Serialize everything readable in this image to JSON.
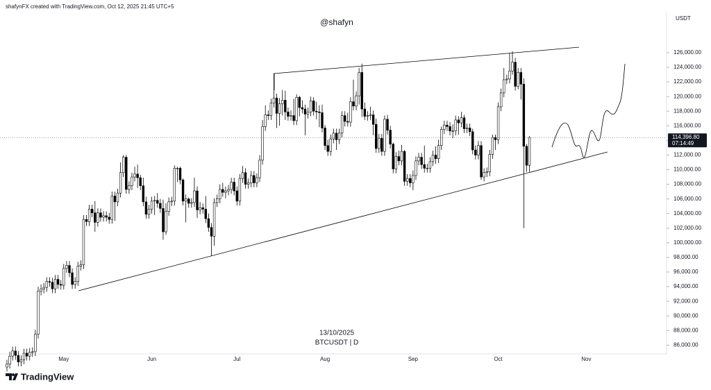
{
  "header": {
    "credit": "shafynFX created with TradingView.com, Oct 12, 2025 21:45 UTC+5",
    "author": "@shafyn",
    "brand": "TradingView"
  },
  "chart_data": {
    "type": "candlestick",
    "symbol": "BTCUSDT | D",
    "date_label": "13/10/2025",
    "currency": "USDT",
    "up_color": "#ffffff",
    "down_color": "#000000",
    "edge_color": "#000000",
    "last_price": {
      "value": 114396.8,
      "label": "114,396.80"
    },
    "countdown": "07:14:49",
    "ylim": [
      84800,
      131500
    ],
    "yticks": [
      {
        "value": 86000,
        "label": "86,000.00"
      },
      {
        "value": 88000,
        "label": "88,000.00"
      },
      {
        "value": 90000,
        "label": "90,000.00"
      },
      {
        "value": 92000,
        "label": "92,000.00"
      },
      {
        "value": 94000,
        "label": "94,000.00"
      },
      {
        "value": 96000,
        "label": "96,000.00"
      },
      {
        "value": 98000,
        "label": "98,000.00"
      },
      {
        "value": 100000,
        "label": "100,000.00"
      },
      {
        "value": 102000,
        "label": "102,000.00"
      },
      {
        "value": 104000,
        "label": "104,000.00"
      },
      {
        "value": 106000,
        "label": "106,000.00"
      },
      {
        "value": 108000,
        "label": "108,000.00"
      },
      {
        "value": 110000,
        "label": "110,000.00"
      },
      {
        "value": 112000,
        "label": "112,000.00"
      },
      {
        "value": 114000,
        "label": "114,000.00"
      },
      {
        "value": 116000,
        "label": "116,000.00"
      },
      {
        "value": 118000,
        "label": "118,000.00"
      },
      {
        "value": 120000,
        "label": "120,000.00"
      },
      {
        "value": 122000,
        "label": "122,000.00"
      },
      {
        "value": 124000,
        "label": "124,000.00"
      },
      {
        "value": 126000,
        "label": "126,000.00"
      }
    ],
    "categories": [
      null,
      null,
      null,
      null,
      null,
      null,
      null,
      null,
      null,
      null,
      null,
      null,
      null,
      null,
      null,
      null,
      null,
      null,
      null,
      null,
      "May",
      null,
      null,
      null,
      null,
      null,
      null,
      null,
      null,
      null,
      null,
      null,
      null,
      null,
      null,
      null,
      null,
      null,
      null,
      null,
      null,
      null,
      null,
      null,
      null,
      null,
      null,
      null,
      null,
      null,
      null,
      "Jun",
      null,
      null,
      null,
      null,
      null,
      null,
      null,
      null,
      null,
      null,
      null,
      null,
      null,
      null,
      null,
      null,
      null,
      null,
      null,
      null,
      null,
      null,
      null,
      null,
      null,
      null,
      null,
      null,
      null,
      "Jul",
      null,
      null,
      null,
      null,
      null,
      null,
      null,
      null,
      null,
      null,
      null,
      null,
      null,
      null,
      null,
      null,
      null,
      null,
      null,
      null,
      null,
      null,
      null,
      null,
      null,
      null,
      null,
      null,
      null,
      null,
      "Aug",
      null,
      null,
      null,
      null,
      null,
      null,
      null,
      null,
      null,
      null,
      null,
      null,
      null,
      null,
      null,
      null,
      null,
      null,
      null,
      null,
      null,
      null,
      null,
      null,
      null,
      null,
      null,
      null,
      null,
      null,
      "Sep",
      null,
      null,
      null,
      null,
      null,
      null,
      null,
      null,
      null,
      null,
      null,
      null,
      null,
      null,
      null,
      null,
      null,
      null,
      null,
      null,
      null,
      null,
      null,
      null,
      null,
      null,
      null,
      null,
      null,
      "Oct",
      null,
      null,
      null,
      null,
      null,
      null,
      null,
      null,
      null,
      null,
      null,
      null,
      null,
      null,
      null,
      null,
      null,
      null,
      null,
      null,
      null,
      null,
      null,
      null,
      null,
      null,
      null,
      null,
      null,
      null,
      "Nov"
    ],
    "ohlc": [
      [
        83000,
        84000,
        82400,
        83400
      ],
      [
        83400,
        85100,
        82800,
        84500
      ],
      [
        84500,
        85800,
        83900,
        85200
      ],
      [
        85200,
        85800,
        84000,
        84600
      ],
      [
        84600,
        85200,
        83100,
        83700
      ],
      [
        83700,
        84600,
        83100,
        84000
      ],
      [
        84000,
        85500,
        83400,
        84900
      ],
      [
        84900,
        85500,
        83900,
        84500
      ],
      [
        84500,
        85600,
        83900,
        85000
      ],
      [
        85000,
        85700,
        84400,
        85100
      ],
      [
        85100,
        88100,
        84500,
        87500
      ],
      [
        87500,
        94000,
        86900,
        93400
      ],
      [
        93400,
        94300,
        92800,
        93700
      ],
      [
        93700,
        94500,
        93100,
        93900
      ],
      [
        93900,
        95300,
        93300,
        94700
      ],
      [
        94700,
        95300,
        94000,
        94600
      ],
      [
        94600,
        95200,
        93100,
        93700
      ],
      [
        93700,
        95600,
        93100,
        95000
      ],
      [
        95000,
        95600,
        93700,
        94300
      ],
      [
        94300,
        94900,
        93600,
        94200
      ],
      [
        94200,
        97100,
        93600,
        96500
      ],
      [
        96500,
        97500,
        95900,
        96900
      ],
      [
        96900,
        97500,
        95300,
        95900
      ],
      [
        95900,
        96500,
        93700,
        94300
      ],
      [
        94300,
        95300,
        93700,
        94700
      ],
      [
        94700,
        97400,
        94100,
        96800
      ],
      [
        96800,
        97600,
        96200,
        97000
      ],
      [
        97000,
        103800,
        96400,
        103200
      ],
      [
        103200,
        103800,
        102300,
        102900
      ],
      [
        102900,
        105200,
        102300,
        104600
      ],
      [
        104600,
        105200,
        103500,
        104100
      ],
      [
        104100,
        105700,
        101500,
        102800
      ],
      [
        102800,
        104700,
        102200,
        104100
      ],
      [
        104100,
        104700,
        102900,
        103500
      ],
      [
        103500,
        104300,
        102900,
        103700
      ],
      [
        103700,
        104300,
        102900,
        103500
      ],
      [
        103500,
        104100,
        102600,
        103200
      ],
      [
        103200,
        107000,
        102600,
        106400
      ],
      [
        106400,
        107000,
        103000,
        105600
      ],
      [
        105600,
        107400,
        105000,
        106800
      ],
      [
        106800,
        111000,
        106200,
        109600
      ],
      [
        109600,
        112000,
        109000,
        111700
      ],
      [
        111700,
        112000,
        106700,
        107300
      ],
      [
        107300,
        108400,
        106700,
        107800
      ],
      [
        107800,
        109600,
        107200,
        109000
      ],
      [
        109000,
        110400,
        108400,
        109400
      ],
      [
        109400,
        110700,
        107500,
        108900
      ],
      [
        108900,
        109300,
        107200,
        107800
      ],
      [
        107800,
        108900,
        105000,
        105600
      ],
      [
        105600,
        106300,
        103300,
        103900
      ],
      [
        103900,
        105200,
        103300,
        104600
      ],
      [
        104600,
        106300,
        104000,
        105700
      ],
      [
        105700,
        106400,
        103800,
        105800
      ],
      [
        105800,
        106800,
        104800,
        105400
      ],
      [
        105400,
        106000,
        104100,
        104700
      ],
      [
        104700,
        105900,
        100400,
        101500
      ],
      [
        101500,
        105400,
        101100,
        104300
      ],
      [
        104300,
        106200,
        103700,
        105600
      ],
      [
        105600,
        106300,
        105000,
        105700
      ],
      [
        105700,
        110600,
        105100,
        110200
      ],
      [
        110200,
        110400,
        108300,
        110200
      ],
      [
        110200,
        110400,
        108000,
        108600
      ],
      [
        108600,
        108800,
        105100,
        105700
      ],
      [
        105700,
        106600,
        102800,
        106000
      ],
      [
        106000,
        106200,
        104800,
        105400
      ],
      [
        105400,
        106100,
        104800,
        105500
      ],
      [
        105500,
        108900,
        104900,
        107100
      ],
      [
        107100,
        107700,
        103400,
        104500
      ],
      [
        104500,
        105600,
        103900,
        104800
      ],
      [
        104800,
        105400,
        104000,
        104600
      ],
      [
        104600,
        106400,
        102700,
        103300
      ],
      [
        103300,
        104000,
        101500,
        102100
      ],
      [
        102100,
        102700,
        98200,
        100900
      ],
      [
        100900,
        106100,
        99600,
        105500
      ],
      [
        105500,
        106600,
        104900,
        106000
      ],
      [
        106000,
        108000,
        105400,
        107300
      ],
      [
        107300,
        108200,
        106300,
        106900
      ],
      [
        106900,
        107700,
        106100,
        107100
      ],
      [
        107100,
        107900,
        106500,
        107300
      ],
      [
        107300,
        108900,
        106700,
        108300
      ],
      [
        108300,
        108900,
        106500,
        107100
      ],
      [
        107100,
        107700,
        105100,
        105700
      ],
      [
        105700,
        109400,
        105100,
        108800
      ],
      [
        108800,
        110500,
        108200,
        109600
      ],
      [
        109600,
        110200,
        107400,
        108000
      ],
      [
        108000,
        108800,
        107400,
        108200
      ],
      [
        108200,
        109800,
        107600,
        109200
      ],
      [
        109200,
        109800,
        107600,
        108200
      ],
      [
        108200,
        109500,
        107600,
        108900
      ],
      [
        108900,
        112000,
        108300,
        111300
      ],
      [
        111300,
        116800,
        110700,
        115900
      ],
      [
        115900,
        118800,
        115300,
        117500
      ],
      [
        117500,
        118100,
        116800,
        117400
      ],
      [
        117400,
        119700,
        116800,
        119100
      ],
      [
        119100,
        123200,
        118500,
        119800
      ],
      [
        119800,
        120400,
        115700,
        117700
      ],
      [
        117700,
        119800,
        116000,
        119000
      ],
      [
        119000,
        120900,
        117400,
        119500
      ],
      [
        119500,
        120800,
        116800,
        117900
      ],
      [
        117900,
        118500,
        116700,
        117300
      ],
      [
        117300,
        118100,
        116700,
        117400
      ],
      [
        117400,
        119700,
        116100,
        116700
      ],
      [
        116700,
        120300,
        116100,
        119900
      ],
      [
        119900,
        120100,
        117300,
        118500
      ],
      [
        118500,
        119500,
        117700,
        118300
      ],
      [
        118300,
        118900,
        114700,
        117600
      ],
      [
        117600,
        118500,
        117000,
        117900
      ],
      [
        117900,
        120000,
        117300,
        119400
      ],
      [
        119400,
        119900,
        117400,
        118000
      ],
      [
        118000,
        119300,
        116900,
        117900
      ],
      [
        117900,
        118800,
        115800,
        117800
      ],
      [
        117800,
        118900,
        115100,
        115700
      ],
      [
        115700,
        116100,
        112700,
        113300
      ],
      [
        113300,
        114100,
        111900,
        112500
      ],
      [
        112500,
        114800,
        111900,
        114200
      ],
      [
        114200,
        115600,
        113600,
        115000
      ],
      [
        115000,
        115600,
        112700,
        114100
      ],
      [
        114100,
        115600,
        113500,
        115000
      ],
      [
        115000,
        118000,
        114400,
        117400
      ],
      [
        117400,
        118000,
        115900,
        116600
      ],
      [
        116600,
        117800,
        115900,
        116500
      ],
      [
        116500,
        119900,
        115900,
        119300
      ],
      [
        119300,
        122300,
        118100,
        118700
      ],
      [
        118700,
        120700,
        118100,
        120100
      ],
      [
        120100,
        123900,
        118900,
        123300
      ],
      [
        123300,
        124500,
        117200,
        118300
      ],
      [
        118300,
        119200,
        116800,
        117300
      ],
      [
        117300,
        118000,
        116700,
        117400
      ],
      [
        117400,
        118600,
        116800,
        117500
      ],
      [
        117500,
        118100,
        114700,
        116200
      ],
      [
        116200,
        117000,
        112300,
        112900
      ],
      [
        112900,
        114900,
        112300,
        114300
      ],
      [
        114300,
        114900,
        111900,
        112500
      ],
      [
        112500,
        117400,
        111900,
        116900
      ],
      [
        116900,
        117500,
        114800,
        115400
      ],
      [
        115400,
        116000,
        112900,
        113500
      ],
      [
        113500,
        113700,
        109500,
        110100
      ],
      [
        110100,
        112400,
        109500,
        111800
      ],
      [
        111800,
        112600,
        110600,
        111200
      ],
      [
        111200,
        113400,
        110600,
        112500
      ],
      [
        112500,
        112700,
        107800,
        108400
      ],
      [
        108400,
        109400,
        107800,
        108800
      ],
      [
        108800,
        109400,
        107600,
        108200
      ],
      [
        108200,
        109900,
        107200,
        109200
      ],
      [
        109200,
        111800,
        108600,
        111200
      ],
      [
        111200,
        112300,
        110600,
        111700
      ],
      [
        111700,
        112300,
        110100,
        110700
      ],
      [
        110700,
        113300,
        109600,
        110200
      ],
      [
        110200,
        110800,
        109600,
        110200
      ],
      [
        110200,
        111700,
        109600,
        111100
      ],
      [
        111100,
        112600,
        110500,
        112000
      ],
      [
        112000,
        113200,
        110800,
        111500
      ],
      [
        111500,
        114100,
        110900,
        113300
      ],
      [
        113300,
        115900,
        112700,
        115500
      ],
      [
        115500,
        116700,
        114900,
        116100
      ],
      [
        116100,
        116700,
        115300,
        115900
      ],
      [
        115900,
        116500,
        114700,
        115300
      ],
      [
        115300,
        116200,
        114300,
        115300
      ],
      [
        115300,
        117400,
        114700,
        116800
      ],
      [
        116800,
        117300,
        114800,
        116400
      ],
      [
        116400,
        117900,
        115800,
        117100
      ],
      [
        117100,
        117500,
        115000,
        115600
      ],
      [
        115600,
        116300,
        115000,
        115700
      ],
      [
        115700,
        116300,
        114600,
        115200
      ],
      [
        115200,
        115600,
        112100,
        112700
      ],
      [
        112700,
        113300,
        111400,
        112000
      ],
      [
        112000,
        113900,
        111400,
        113300
      ],
      [
        113300,
        113900,
        108600,
        109000
      ],
      [
        109000,
        110200,
        108400,
        109600
      ],
      [
        109600,
        110300,
        109000,
        109700
      ],
      [
        109700,
        112700,
        109100,
        112100
      ],
      [
        112100,
        114800,
        111500,
        114400
      ],
      [
        114400,
        114800,
        112700,
        114100
      ],
      [
        114100,
        119200,
        113500,
        118600
      ],
      [
        118600,
        121100,
        118000,
        120500
      ],
      [
        120500,
        123900,
        119900,
        122300
      ],
      [
        122300,
        123000,
        121700,
        122400
      ],
      [
        122400,
        125900,
        121800,
        123500
      ],
      [
        123500,
        126200,
        123000,
        124700
      ],
      [
        124700,
        125300,
        120800,
        121400
      ],
      [
        121400,
        123900,
        121000,
        123300
      ],
      [
        123300,
        123900,
        119600,
        121700
      ],
      [
        121700,
        122500,
        102000,
        113200
      ],
      [
        113200,
        113500,
        109700,
        110600
      ],
      [
        110600,
        114600,
        109700,
        114396.8
      ],
      null,
      null,
      null,
      null,
      null,
      null,
      null,
      null,
      null,
      null,
      null,
      null,
      null,
      null,
      null,
      null,
      null,
      null,
      null,
      null
    ]
  }
}
